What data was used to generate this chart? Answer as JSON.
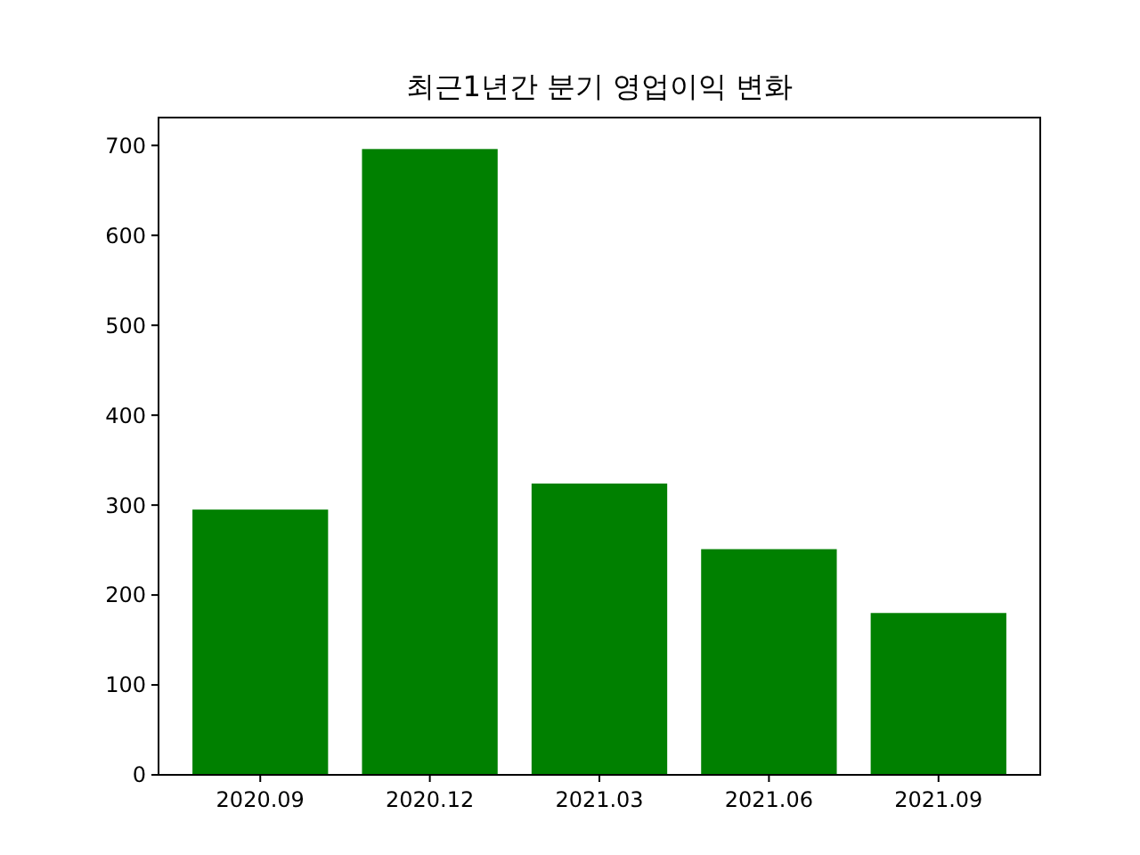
{
  "chart_data": {
    "type": "bar",
    "title": "최근1년간 분기 영업이익 변화",
    "categories": [
      "2020.09",
      "2020.12",
      "2021.03",
      "2021.06",
      "2021.09"
    ],
    "values": [
      295,
      696,
      324,
      251,
      180
    ],
    "color": "#008000",
    "ylim": [
      0,
      731
    ],
    "yticks": [
      0,
      100,
      200,
      300,
      400,
      500,
      600,
      700
    ],
    "grid": false
  }
}
